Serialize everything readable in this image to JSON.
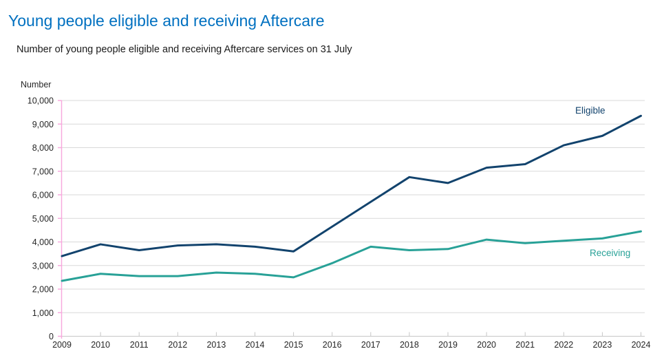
{
  "chart_data": {
    "type": "line",
    "title": "Young people eligible and receiving Aftercare",
    "subtitle": "Number of young people eligible and receiving Aftercare services on 31 July",
    "ylabel": "Number",
    "x": [
      2009,
      2010,
      2011,
      2012,
      2013,
      2014,
      2015,
      2016,
      2017,
      2018,
      2019,
      2020,
      2021,
      2022,
      2023,
      2024
    ],
    "series": [
      {
        "name": "Eligible",
        "color": "#12436D",
        "values": [
          3400,
          3900,
          3650,
          3850,
          3900,
          3800,
          3600,
          4650,
          5700,
          6750,
          6500,
          7150,
          7300,
          8100,
          8500,
          9350
        ]
      },
      {
        "name": "Receiving",
        "color": "#28A197",
        "values": [
          2350,
          2650,
          2550,
          2550,
          2700,
          2650,
          2500,
          3100,
          3800,
          3650,
          3700,
          4100,
          3950,
          4050,
          4150,
          4450
        ]
      }
    ],
    "ylim": [
      0,
      10000
    ],
    "ytick_step": 1000,
    "grid": "horizontal",
    "legend": "inline-labels-on-chart",
    "title_color": "#0070C0",
    "text_color": "#262626",
    "axis_colors": {
      "y_axis": "#f8a9de",
      "x_axis": "#c6c6c6",
      "grid": "#d9d9d9"
    }
  }
}
